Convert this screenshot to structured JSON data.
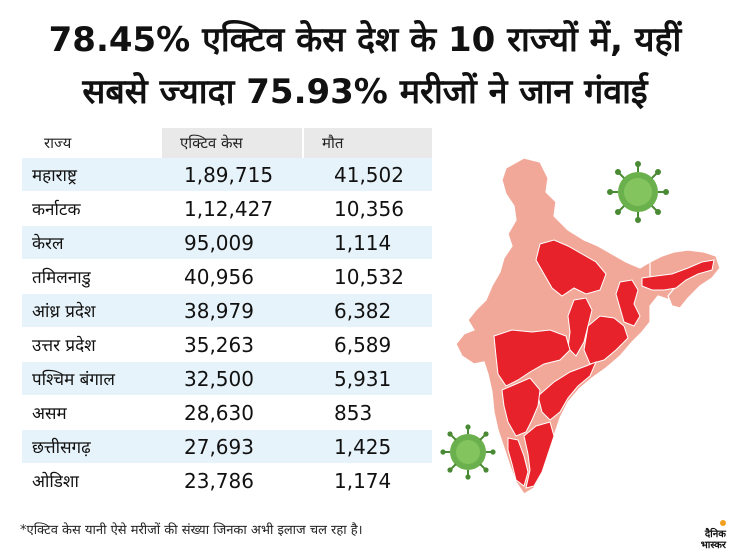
{
  "title": {
    "line1": "78.45% एक्टिव केस देश के 10 राज्यों में, यहीं",
    "line2": "सबसे ज्यादा 75.93% मरीजों ने जान गंवाई"
  },
  "table": {
    "headers": [
      "राज्य",
      "एक्टिव केस",
      "मौत"
    ],
    "rows": [
      {
        "state": "महाराष्ट्र",
        "active": "1,89,715",
        "deaths": "41,502"
      },
      {
        "state": "कर्नाटक",
        "active": "1,12,427",
        "deaths": "10,356"
      },
      {
        "state": "केरल",
        "active": "95,009",
        "deaths": "1,114"
      },
      {
        "state": "तमिलनाडु",
        "active": "40,956",
        "deaths": "10,532"
      },
      {
        "state": "आंध्र प्रदेश",
        "active": "38,979",
        "deaths": "6,382"
      },
      {
        "state": "उत्तर प्रदेश",
        "active": "35,263",
        "deaths": "6,589"
      },
      {
        "state": "पश्चिम बंगाल",
        "active": "32,500",
        "deaths": "5,931"
      },
      {
        "state": "असम",
        "active": "28,630",
        "deaths": "853"
      },
      {
        "state": "छत्तीसगढ़",
        "active": "27,693",
        "deaths": "1,425"
      },
      {
        "state": "ओडिशा",
        "active": "23,786",
        "deaths": "1,174"
      }
    ]
  },
  "footnote": "*एक्टिव केस यानी ऐसे मरीजों की संख्या जिनका अभी इलाज चल रहा है।",
  "logo": {
    "line1": "दैनिक",
    "line2": "भास्कर"
  },
  "colors": {
    "highlight_state": "#e8222a",
    "other_state": "#f2a898",
    "virus": "#6ab04c",
    "row_alt": "#e7f3fa"
  },
  "icons": [
    "virus-icon",
    "india-map"
  ]
}
